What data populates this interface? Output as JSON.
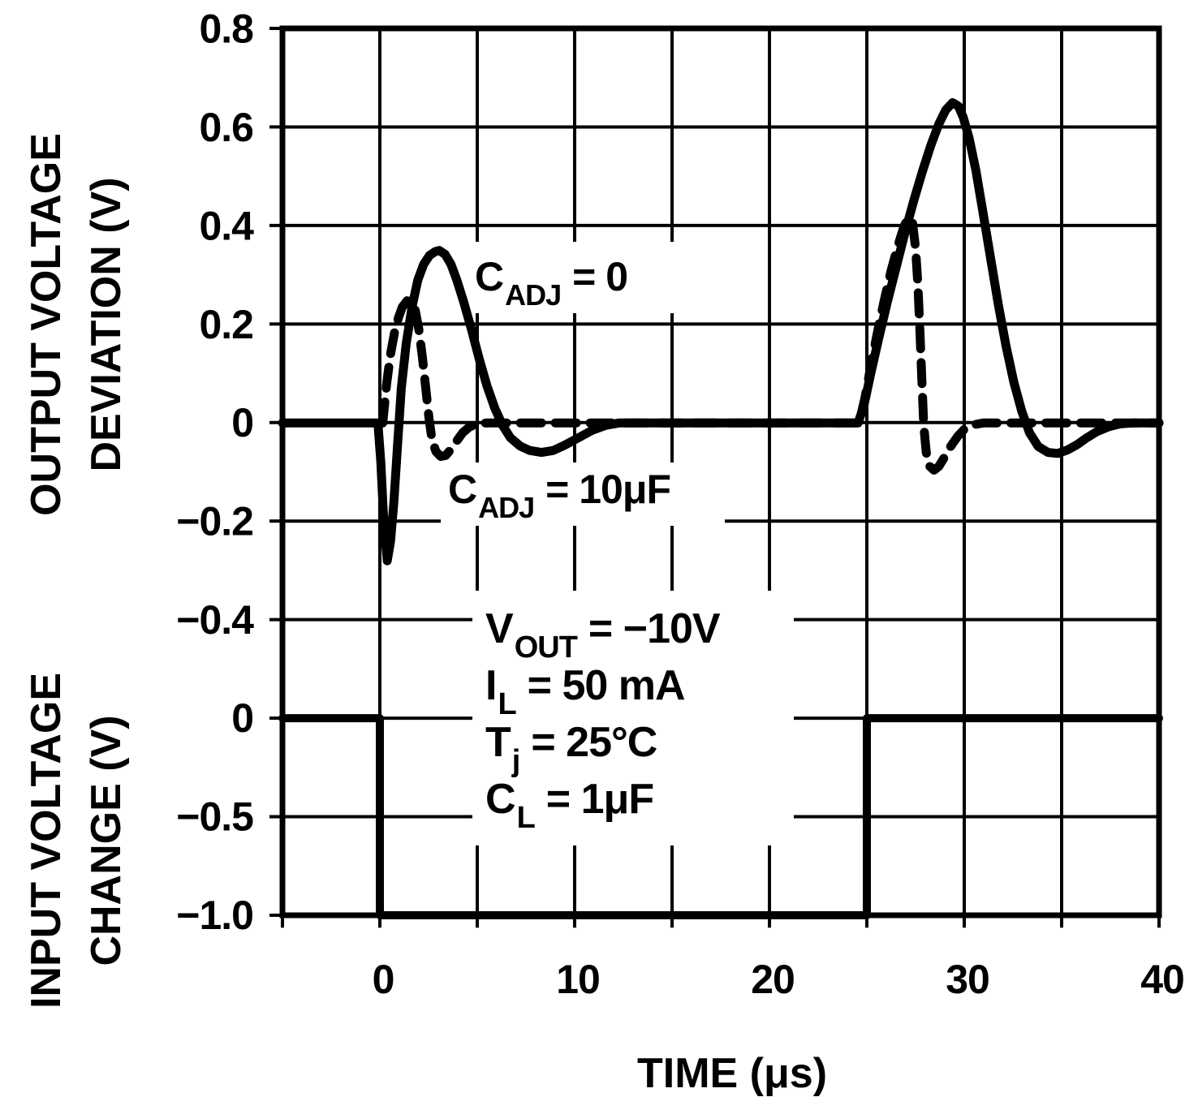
{
  "figure": {
    "y_axis_top_title_line1": "OUTPUT VOLTAGE",
    "y_axis_top_title_line2": "DEVIATION (V)",
    "y_axis_bottom_title_line1": "INPUT VOLTAGE",
    "y_axis_bottom_title_line2": "CHANGE (V)",
    "x_axis_title": "TIME (μs)",
    "ink_color": "#000000",
    "background_color": "#ffffff"
  },
  "chart_data": {
    "type": "line",
    "title": "",
    "xlabel": "TIME (μs)",
    "grid": true,
    "legend_position": "inline-curve-labels",
    "x_axis": {
      "range_us": [
        -5,
        40
      ],
      "gridline_spacing_us": 5,
      "ticks": [
        {
          "t": 0,
          "label": "0"
        },
        {
          "t": 10,
          "label": "10"
        },
        {
          "t": 20,
          "label": "20"
        },
        {
          "t": 30,
          "label": "30"
        },
        {
          "t": 40,
          "label": "40"
        }
      ]
    },
    "output_axis": {
      "label": "OUTPUT VOLTAGE DEVIATION (V)",
      "range_v": [
        -0.4,
        0.8
      ],
      "gridline_spacing_v": 0.2,
      "ticks": [
        {
          "v": 0.8,
          "label": "0.8"
        },
        {
          "v": 0.6,
          "label": "0.6"
        },
        {
          "v": 0.4,
          "label": "0.4"
        },
        {
          "v": 0.2,
          "label": "0.2"
        },
        {
          "v": 0,
          "label": "0"
        },
        {
          "v": -0.2,
          "label": "−0.2"
        },
        {
          "v": -0.4,
          "label": "−0.4"
        }
      ]
    },
    "input_axis": {
      "label": "INPUT VOLTAGE CHANGE (V)",
      "range_v": [
        -1.0,
        0
      ],
      "gridline_spacing_v": 0.5,
      "ticks": [
        {
          "v": 0,
          "label": "0"
        },
        {
          "v": -0.5,
          "label": "−0.5"
        },
        {
          "v": -1.0,
          "label": "−1.0"
        }
      ]
    },
    "series": [
      {
        "name": "CADJ = 0",
        "style": "solid",
        "scale": "output",
        "points": [
          [
            -5,
            0
          ],
          [
            -0.1,
            0
          ],
          [
            0.05,
            -0.08
          ],
          [
            0.2,
            -0.2
          ],
          [
            0.38,
            -0.28
          ],
          [
            0.55,
            -0.24
          ],
          [
            0.72,
            -0.16
          ],
          [
            0.9,
            -0.05
          ],
          [
            1.1,
            0.07
          ],
          [
            1.35,
            0.16
          ],
          [
            1.65,
            0.235
          ],
          [
            1.95,
            0.29
          ],
          [
            2.25,
            0.322
          ],
          [
            2.55,
            0.34
          ],
          [
            2.85,
            0.348
          ],
          [
            3.05,
            0.35
          ],
          [
            3.35,
            0.342
          ],
          [
            3.65,
            0.322
          ],
          [
            3.95,
            0.29
          ],
          [
            4.3,
            0.246
          ],
          [
            4.7,
            0.19
          ],
          [
            5.1,
            0.13
          ],
          [
            5.5,
            0.075
          ],
          [
            5.9,
            0.03
          ],
          [
            6.3,
            -0.005
          ],
          [
            6.7,
            -0.03
          ],
          [
            7.2,
            -0.047
          ],
          [
            7.7,
            -0.056
          ],
          [
            8.3,
            -0.06
          ],
          [
            8.9,
            -0.056
          ],
          [
            9.5,
            -0.045
          ],
          [
            10.2,
            -0.03
          ],
          [
            10.9,
            -0.015
          ],
          [
            11.6,
            -0.005
          ],
          [
            12.3,
            0
          ],
          [
            24.55,
            0
          ],
          [
            24.85,
            0.035
          ],
          [
            25.2,
            0.1
          ],
          [
            25.6,
            0.17
          ],
          [
            26.05,
            0.245
          ],
          [
            26.5,
            0.315
          ],
          [
            26.95,
            0.385
          ],
          [
            27.4,
            0.45
          ],
          [
            27.85,
            0.51
          ],
          [
            28.3,
            0.565
          ],
          [
            28.7,
            0.607
          ],
          [
            29.05,
            0.635
          ],
          [
            29.4,
            0.65
          ],
          [
            29.7,
            0.643
          ],
          [
            29.95,
            0.62
          ],
          [
            30.25,
            0.578
          ],
          [
            30.6,
            0.512
          ],
          [
            30.95,
            0.43
          ],
          [
            31.35,
            0.335
          ],
          [
            31.75,
            0.24
          ],
          [
            32.15,
            0.155
          ],
          [
            32.55,
            0.082
          ],
          [
            32.95,
            0.024
          ],
          [
            33.35,
            -0.02
          ],
          [
            33.8,
            -0.048
          ],
          [
            34.3,
            -0.06
          ],
          [
            34.8,
            -0.062
          ],
          [
            35.3,
            -0.055
          ],
          [
            35.8,
            -0.044
          ],
          [
            36.3,
            -0.03
          ],
          [
            36.8,
            -0.018
          ],
          [
            37.4,
            -0.008
          ],
          [
            38,
            -0.002
          ],
          [
            38.7,
            0
          ],
          [
            40,
            0
          ]
        ]
      },
      {
        "name": "CADJ = 10μF",
        "style": "dashed",
        "scale": "output",
        "points": [
          [
            0.15,
            0
          ],
          [
            0.35,
            0.08
          ],
          [
            0.55,
            0.14
          ],
          [
            0.75,
            0.183
          ],
          [
            0.95,
            0.213
          ],
          [
            1.15,
            0.235
          ],
          [
            1.4,
            0.248
          ],
          [
            1.62,
            0.247
          ],
          [
            1.82,
            0.228
          ],
          [
            2,
            0.19
          ],
          [
            2.18,
            0.135
          ],
          [
            2.36,
            0.07
          ],
          [
            2.52,
            0.01
          ],
          [
            2.68,
            -0.035
          ],
          [
            2.88,
            -0.058
          ],
          [
            3.12,
            -0.068
          ],
          [
            3.38,
            -0.066
          ],
          [
            3.64,
            -0.054
          ],
          [
            3.92,
            -0.038
          ],
          [
            4.25,
            -0.02
          ],
          [
            4.6,
            -0.008
          ],
          [
            5,
            -0.002
          ],
          [
            5.5,
            0
          ],
          [
            24.6,
            0
          ],
          [
            24.9,
            0.05
          ],
          [
            25.2,
            0.115
          ],
          [
            25.55,
            0.185
          ],
          [
            25.9,
            0.25
          ],
          [
            26.25,
            0.31
          ],
          [
            26.6,
            0.36
          ],
          [
            26.9,
            0.398
          ],
          [
            27.15,
            0.418
          ],
          [
            27.35,
            0.405
          ],
          [
            27.5,
            0.355
          ],
          [
            27.62,
            0.28
          ],
          [
            27.72,
            0.19
          ],
          [
            27.82,
            0.09
          ],
          [
            27.92,
            -0.005
          ],
          [
            28.05,
            -0.06
          ],
          [
            28.22,
            -0.088
          ],
          [
            28.45,
            -0.096
          ],
          [
            28.7,
            -0.088
          ],
          [
            28.98,
            -0.07
          ],
          [
            29.3,
            -0.048
          ],
          [
            29.65,
            -0.028
          ],
          [
            30,
            -0.013
          ],
          [
            30.45,
            -0.004
          ],
          [
            31,
            0
          ],
          [
            40,
            0
          ]
        ]
      },
      {
        "name": "input voltage step",
        "style": "step",
        "scale": "input",
        "points": [
          [
            -5,
            0
          ],
          [
            0,
            0
          ],
          [
            0,
            -1
          ],
          [
            25,
            -1
          ],
          [
            25,
            0
          ],
          [
            40,
            0
          ]
        ]
      }
    ],
    "annotations": {
      "curve_label_1": {
        "main": "C",
        "sub": "ADJ",
        "rest": "= 0"
      },
      "curve_label_2": {
        "main": "C",
        "sub": "ADJ",
        "rest": "= 10μF"
      },
      "conditions": [
        {
          "main": "V",
          "sub": "OUT",
          "rest": "= −10V"
        },
        {
          "main": "I",
          "sub": "L",
          "rest": "= 50 mA"
        },
        {
          "main": "T",
          "sub": "j",
          "rest": "= 25°C"
        },
        {
          "main": "C",
          "sub": "L",
          "rest": "= 1μF"
        }
      ]
    }
  }
}
